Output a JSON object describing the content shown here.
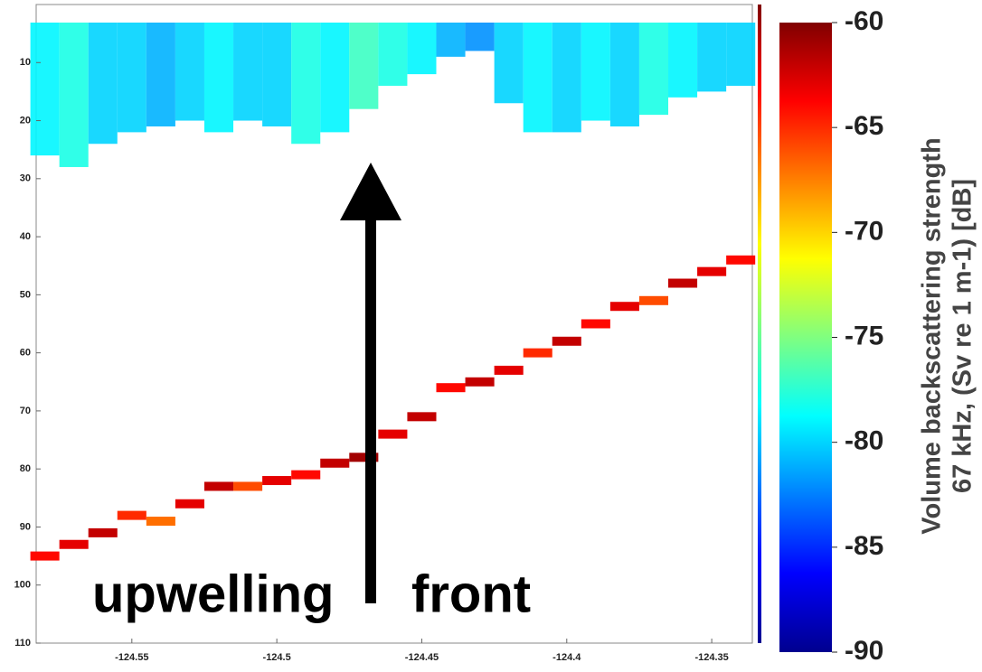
{
  "chart_data": {
    "type": "heatmap",
    "xlim": [
      -124.583,
      -124.336
    ],
    "ylim": [
      0,
      110
    ],
    "y_reversed": true,
    "xticks": [
      -124.55,
      -124.5,
      -124.45,
      -124.4,
      -124.35
    ],
    "yticks": [
      10,
      20,
      30,
      40,
      50,
      60,
      70,
      80,
      90,
      100,
      110
    ],
    "clim": [
      -90,
      -60
    ],
    "cticks": [
      -60,
      -65,
      -70,
      -75,
      -80,
      -85,
      -90
    ],
    "colorbar_label": [
      "Volume backscattering strength",
      "67 kHz, (Sv re 1 m-1) [dB]"
    ],
    "annotations": [
      "upwelling",
      "front"
    ],
    "bottom_echo": {
      "x": [
        -124.58,
        -124.57,
        -124.56,
        -124.55,
        -124.54,
        -124.53,
        -124.52,
        -124.51,
        -124.5,
        -124.49,
        -124.48,
        -124.47,
        -124.46,
        -124.45,
        -124.44,
        -124.43,
        -124.42,
        -124.41,
        -124.4,
        -124.39,
        -124.38,
        -124.37,
        -124.36,
        -124.35,
        -124.34
      ],
      "y": [
        95,
        93,
        91,
        88,
        89,
        86,
        83,
        83,
        82,
        81,
        79,
        78,
        74,
        71,
        66,
        65,
        63,
        60,
        58,
        55,
        52,
        51,
        48,
        46,
        44
      ],
      "values": [
        -64,
        -63,
        -62,
        -65,
        -67,
        -63,
        -62,
        -66,
        -63,
        -64,
        -62,
        -61,
        -63,
        -62,
        -64,
        -62,
        -63,
        -65,
        -62,
        -64,
        -63,
        -66,
        -62,
        -63,
        -64
      ]
    },
    "scattering_layer": {
      "x": [
        -124.58,
        -124.57,
        -124.56,
        -124.55,
        -124.54,
        -124.53,
        -124.52,
        -124.51,
        -124.5,
        -124.49,
        -124.48,
        -124.47,
        -124.46,
        -124.45,
        -124.44,
        -124.43,
        -124.42,
        -124.41,
        -124.4,
        -124.39,
        -124.38,
        -124.37,
        -124.36,
        -124.35,
        -124.34
      ],
      "y": [
        26,
        28,
        24,
        22,
        21,
        20,
        22,
        20,
        21,
        24,
        22,
        18,
        14,
        12,
        9,
        8,
        17,
        22,
        22,
        20,
        21,
        19,
        16,
        15,
        14
      ],
      "values": [
        -79,
        -78,
        -80,
        -80,
        -81,
        -80,
        -79,
        -80,
        -80,
        -78,
        -79,
        -77,
        -78,
        -79,
        -81,
        -82,
        -80,
        -79,
        -80,
        -79,
        -80,
        -78,
        -79,
        -80,
        -80
      ]
    }
  }
}
